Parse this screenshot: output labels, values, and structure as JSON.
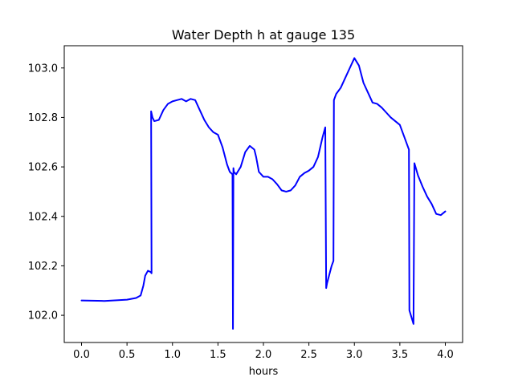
{
  "chart_data": {
    "type": "line",
    "title": "Water Depth h at gauge 135",
    "xlabel": "hours",
    "ylabel": "",
    "xlim": [
      -0.19,
      4.19
    ],
    "ylim": [
      101.89,
      103.09
    ],
    "xticks": [
      0.0,
      0.5,
      1.0,
      1.5,
      2.0,
      2.5,
      3.0,
      3.5,
      4.0
    ],
    "xtick_labels": [
      "0.0",
      "0.5",
      "1.0",
      "1.5",
      "2.0",
      "2.5",
      "3.0",
      "3.5",
      "4.0"
    ],
    "yticks": [
      102.0,
      102.2,
      102.4,
      102.6,
      102.8,
      103.0
    ],
    "ytick_labels": [
      "102.0",
      "102.2",
      "102.4",
      "102.6",
      "102.8",
      "103.0"
    ],
    "grid": false,
    "series": [
      {
        "color": "#0000ff",
        "x": [
          0.0,
          0.25,
          0.5,
          0.6,
          0.65,
          0.68,
          0.7,
          0.73,
          0.76,
          0.77,
          0.765,
          0.78,
          0.8,
          0.85,
          0.9,
          0.95,
          1.0,
          1.05,
          1.1,
          1.15,
          1.2,
          1.25,
          1.3,
          1.35,
          1.4,
          1.45,
          1.5,
          1.55,
          1.6,
          1.63,
          1.66,
          1.665,
          1.67,
          1.675,
          1.7,
          1.75,
          1.8,
          1.85,
          1.9,
          1.92,
          1.95,
          2.0,
          2.05,
          2.1,
          2.15,
          2.2,
          2.25,
          2.3,
          2.35,
          2.4,
          2.45,
          2.5,
          2.55,
          2.6,
          2.65,
          2.68,
          2.69,
          2.7,
          2.75,
          2.77,
          2.775,
          2.8,
          2.85,
          2.9,
          2.95,
          3.0,
          3.05,
          3.1,
          3.15,
          3.2,
          3.25,
          3.3,
          3.35,
          3.4,
          3.45,
          3.5,
          3.55,
          3.6,
          3.605,
          3.65,
          3.66,
          3.7,
          3.75,
          3.8,
          3.85,
          3.9,
          3.95,
          4.0
        ],
        "values": [
          102.06,
          102.058,
          102.063,
          102.07,
          102.08,
          102.12,
          102.16,
          102.18,
          102.175,
          102.17,
          102.825,
          102.8,
          102.785,
          102.79,
          102.83,
          102.855,
          102.865,
          102.87,
          102.875,
          102.865,
          102.875,
          102.87,
          102.83,
          102.79,
          102.76,
          102.74,
          102.73,
          102.68,
          102.61,
          102.58,
          102.57,
          101.945,
          102.595,
          102.58,
          102.57,
          102.6,
          102.66,
          102.685,
          102.67,
          102.64,
          102.58,
          102.56,
          102.56,
          102.55,
          102.53,
          102.505,
          102.5,
          102.505,
          102.525,
          102.56,
          102.575,
          102.585,
          102.6,
          102.64,
          102.72,
          102.76,
          102.11,
          102.13,
          102.2,
          102.22,
          102.87,
          102.895,
          102.92,
          102.96,
          103.0,
          103.04,
          103.01,
          102.94,
          102.9,
          102.86,
          102.855,
          102.84,
          102.82,
          102.8,
          102.785,
          102.77,
          102.72,
          102.67,
          102.02,
          101.965,
          102.615,
          102.565,
          102.52,
          102.48,
          102.45,
          102.41,
          102.405,
          102.42
        ]
      }
    ]
  }
}
